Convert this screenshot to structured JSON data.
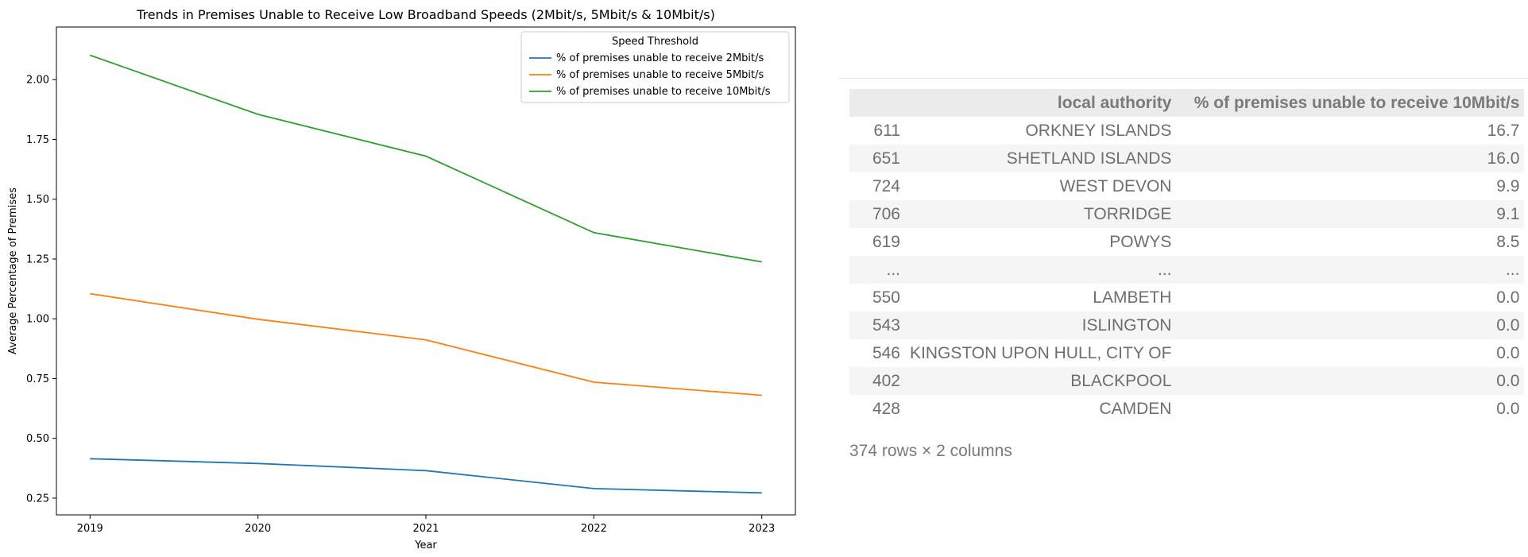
{
  "chart_data": {
    "type": "line",
    "title": "Trends in Premises Unable to Receive Low Broadband Speeds (2Mbit/s, 5Mbit/s & 10Mbit/s)",
    "xlabel": "Year",
    "ylabel": "Average Percentage of Premises",
    "x": [
      2019,
      2020,
      2021,
      2022,
      2023
    ],
    "xticks": [
      "2019",
      "2020",
      "2021",
      "2022",
      "2023"
    ],
    "yticks": [
      "0.25",
      "0.50",
      "0.75",
      "1.00",
      "1.25",
      "1.50",
      "1.75",
      "2.00"
    ],
    "ylim": [
      0.18,
      2.22
    ],
    "grid": false,
    "legend": {
      "title": "Speed Threshold",
      "placement": "upper-right"
    },
    "series": [
      {
        "name": "% of premises unable to receive 2Mbit/s",
        "color": "#1f77b4",
        "values": [
          0.415,
          0.395,
          0.365,
          0.29,
          0.272
        ]
      },
      {
        "name": "% of premises unable to receive 5Mbit/s",
        "color": "#ff7f0e",
        "values": [
          1.105,
          0.998,
          0.912,
          0.735,
          0.68
        ]
      },
      {
        "name": "% of premises unable to receive 10Mbit/s",
        "color": "#2ca02c",
        "values": [
          2.102,
          1.855,
          1.68,
          1.36,
          1.238
        ]
      }
    ]
  },
  "table": {
    "headers": [
      "",
      "local authority",
      "% of premises unable to receive 10Mbit/s"
    ],
    "rows": [
      [
        "611",
        "ORKNEY ISLANDS",
        "16.7"
      ],
      [
        "651",
        "SHETLAND ISLANDS",
        "16.0"
      ],
      [
        "724",
        "WEST DEVON",
        "9.9"
      ],
      [
        "706",
        "TORRIDGE",
        "9.1"
      ],
      [
        "619",
        "POWYS",
        "8.5"
      ],
      [
        "...",
        "...",
        "..."
      ],
      [
        "550",
        "LAMBETH",
        "0.0"
      ],
      [
        "543",
        "ISLINGTON",
        "0.0"
      ],
      [
        "546",
        "KINGSTON UPON HULL, CITY OF",
        "0.0"
      ],
      [
        "402",
        "BLACKPOOL",
        "0.0"
      ],
      [
        "428",
        "CAMDEN",
        "0.0"
      ]
    ],
    "shape_note": "374 rows × 2 columns"
  }
}
